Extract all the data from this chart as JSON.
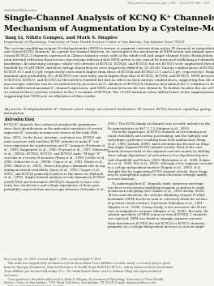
{
  "journal_line": "The Journal of Neuroscience, June 1, 2005  •  25(22):5979–5988  •  5979",
  "section_label": "Cellular/Molecular",
  "title_line1": "Single-Channel Analysis of KCNQ K⁺ Channels Reveals the",
  "title_line2": "Mechanism of Augmentation by a Cysteine-Modifying Reagent",
  "authors": "Yang Li, Nikita Gompez, and Mark S. Shapiro",
  "affiliation": "Department of Physiology, University of Texas Health Science Center at San Antonio, San Antonio Texas 78229",
  "abstract": "The cysteine-modifying reagent N-ethylmaleimide (NEM) is known to augment currents from native M channels in sympathetic neurons\nand cloned KCNQ channels. As a probe for channel function, we investigated the mechanism of NEM action and subunit specificity of\ncloned KCNQ2–3 channels expressed in Chinese hamster ovary cells at the whole-cell and single-channel levels. Biotinylation assays and\ntotal internal reflection fluorescence microscopy indicated that NEM action is not caused by increased trafficking of channels to the\nmembrane. At saturating voltages, whole-cell currents of KCNQ2, KCNQ4, and KCNQ5 but not KCNQ3 were augmented threefold to\nfourfold by 50 μM NEM, and their voltage dependencies were negatively shifted by 10–20 mV. Unitary conductances of KCNQ2 and\nKCNQ5 (6.1 and 6.3 pS, respectively) were much higher than those of KCNQ4 and KCNQ3 (2.1 and 2.2 pS, respectively). Surprisingly, the\nmaximal open probability (Pₒ) of KCNQ3 was near unity, much higher than that of KCNQ2, KCNQ4, and KCNQ5. NEM increased the Pₒ\nof KCNQ2, KCNQ5, and KCNQ5 by threefold to fourfold but had no effect on their unitary conductances, suggesting that the increase in\nmacroscopic currents can be accounted for by increases in Pₒ. Analysis of KCNQ3/4 chimeras determined the C terminus to be responsible\nfor the differential maximal Pₒ channel expression, and NEM action between the two channels. To further localize the site of NEM action,\nwe mutated three cysteine residues in the C terminus of KCNQ4. The C519S mutation alone ablated most of the augmentation by NEM,\nsuggesting that NEM acts via alkylation of this residue.",
  "keywords": "Key words: N-ethylmaleimide; K⁺ channel; patch clamp; ion channel modulation; M current; KCNQ channel; signaling; gating;\nbiotinylation",
  "intro_title": "Introduction",
  "intro_left": "KCNQ K⁺ channels have achieved considerable prominence\nsince their identification as the molecular correlates of several\nimportant K⁺ currents in numerous tissues of the body (Rob-\nbins, 2001). In the heart, intestine, and inner ear, KCNQ1 sub-\nunits associate with auxiliary KCNE subunits to make K⁺ cur-\nrents important for repolarization and K⁺ transport (Barhanin et\nal., 1996; Sanguinetti et al., 1996; Neyroud et al., 1997; Schroeder\net al., 2000a). KCNQ2, KCNQ5, and KCNQ2 make “M-type” K⁺\ncurrents in a variety of neurons (Wang et al., 1998; Lerche et al.,\n2000; Schroeder et al., 2000b; Cooper et al., 2001; Roche et al.,\n2002; Shah et al., 2002), where they play a dominant role in reg-\nulating neuronal excitability (Jones et al., 1995; Cooper et al.,\n2001), and KCNQ4 primarily localizes to the inner ear (Kubisch\net al., 1999). Single-channel analysis reveals homomeric KCNQ2\nand KCNQ4 and heteromeric KCNQ2/3 channels to have rela-\ntively low conductance and voltage dependence of their open\nprobability expected from macroscopic behavior (Selyanko et al.,",
  "intro_right": "2001). The KCNQ family of channels was recently included in the\nKv nomenclature as Kv7.1–7.5 (Gutman et al., 2005).\n    Given the importance of KCNQ channels in determining neu-\nronal excitability and cardiac pacemaking, and the epileptic and\narrhythmia syndromes resulting from their malfunction (Wang\net al., 1996; Jentsch, 2000), much attention has focused on drugs\nthat might augment KCNQ channel activity. Most of the com-\npounds characterized as the augment currents mainly by shifting\ntheir voltage dependence of activation to less depolarized poten-\ntials (Rundfeldt and Netzer, 2000; Wickenden et al., 2000; Schroe-\nder et al., 2001; Wu et al., 2003), although a few augment currents\nin a voltage-independent manner (Dupuis et al., 2002). It is\nthought that by augmenting KCNQ channel activity, these drugs\nmay be antiepileptic agents, or could otherwise strongly modify\nnervous function.\n    To understand how K⁺ channels work, numerous investiga-\ntors have used cysteine-modifying reagents as probes to study\npermeation and gating (del Camino et al., 2000; Karlin, 2002).\nAt low concentrations, the cysteine-alkylating reagent N-ethyl-\nmaleimide (NEM) has been used to selectively block the actions\nof pertussis toxin-sensitive G-proteins (Nakajima et al., 1991;\nShapiro et al., 1994). Unexpectedly, it also increases the M cur-\nrent in sympathetic neurons (Shapiro et al., 2000). Recently, the\nsubunit specificity of NEM action on cloned KCNQ2–5 channels\nwas explored. NEM was found to strongly augment currents\nfrom heteromeric KCNQ2 but not KCNQ3 or KCNQ5 channels,\nprimarily via a voltage-independent increase in current ampli-",
  "footnotes": "Received Jan. 19, 2005; revised April 7, 2005; accepted April 8, 2005.\n    This work was supported by an American Heart Association Texas Affiliate research award, a research project grant\nfrom the Epilepsy Foundation, National Institutes of Health Grant NS43394 (M.S.S.), and an American Heart Association\nTexas Affiliate pre-doctoral fellowship (Y.L.). We thank Pamela Raine and Lee Bohnen (Shap) for expert technical\nassistance.\n    Correspondence should be addressed to Mark S. Shapiro, Department of Physiology, University of Texas Health\nScience Center at San Antonio, 7703 Floyd Curl Drive, San Antonio, TX 78229. E-mail: shapiro@uthscsa.edu.\n    DOI:10.1523/JNEUROSCI.0301-05.2005\n    Copyright © 2005 Society for Neuroscience    0270-6474/05/255979-10$15.00/0",
  "bg_color": "#f5f5f0",
  "text_color": "#1a1a1a",
  "title_color": "#000000",
  "section_color": "#555555",
  "line_color": "#aaaaaa"
}
